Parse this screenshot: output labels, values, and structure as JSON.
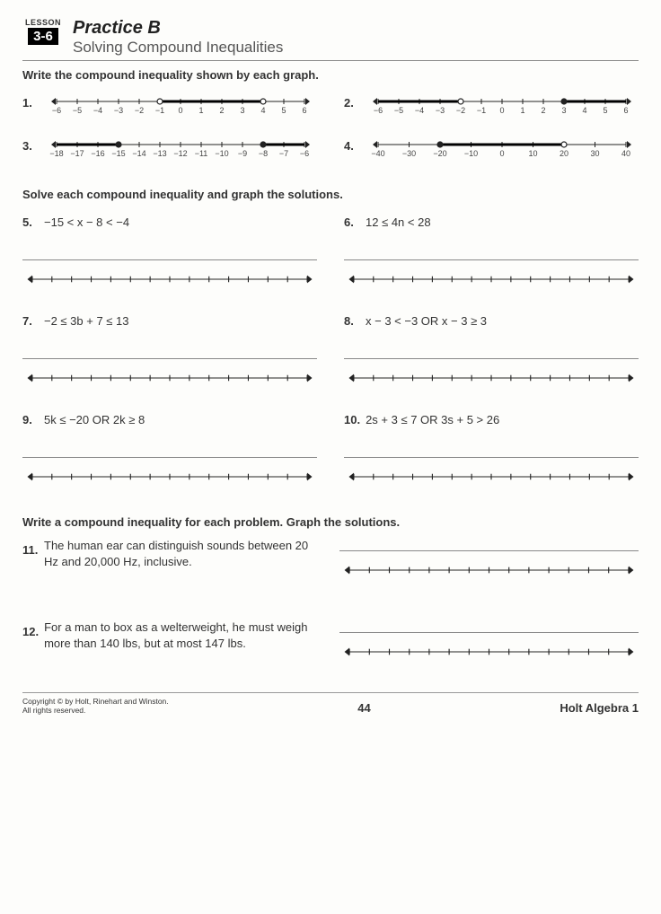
{
  "lesson": {
    "label": "LESSON",
    "number": "3-6"
  },
  "title": "Practice B",
  "subtitle": "Solving Compound Inequalities",
  "section1": {
    "instr": "Write the compound inequality shown by each graph.",
    "problems": [
      {
        "num": "1.",
        "min": -6,
        "max": 6,
        "ticks": [
          -6,
          -5,
          -4,
          -3,
          -2,
          -1,
          0,
          1,
          2,
          3,
          4,
          5,
          6
        ],
        "segments": [
          {
            "a": -1,
            "b": 4,
            "aOpen": true,
            "bOpen": true
          }
        ]
      },
      {
        "num": "2.",
        "min": -6,
        "max": 6,
        "ticks": [
          -6,
          -5,
          -4,
          -3,
          -2,
          -1,
          0,
          1,
          2,
          3,
          4,
          5,
          6
        ],
        "segments": [
          {
            "a": -999,
            "b": -2,
            "aOpen": false,
            "bOpen": true
          },
          {
            "a": 3,
            "b": 999,
            "aOpen": false,
            "bOpen": false
          }
        ]
      },
      {
        "num": "3.",
        "min": -18,
        "max": -6,
        "ticks": [
          -18,
          -17,
          -16,
          -15,
          -14,
          -13,
          -12,
          -11,
          -10,
          -9,
          -8,
          -7,
          -6
        ],
        "segments": [
          {
            "a": -999,
            "b": -15,
            "aOpen": false,
            "bOpen": false
          },
          {
            "a": -8,
            "b": 999,
            "aOpen": false,
            "bOpen": false
          }
        ]
      },
      {
        "num": "4.",
        "min": -40,
        "max": 40,
        "ticks": [
          -40,
          -30,
          -20,
          -10,
          0,
          10,
          20,
          30,
          40
        ],
        "segments": [
          {
            "a": -20,
            "b": 20,
            "aOpen": false,
            "bOpen": true
          }
        ]
      }
    ]
  },
  "section2": {
    "instr": "Solve each compound inequality and graph the solutions.",
    "problems": [
      {
        "num": "5.",
        "text": "−15 < x − 8 < −4"
      },
      {
        "num": "6.",
        "text": "12 ≤ 4n < 28"
      },
      {
        "num": "7.",
        "text": "−2 ≤ 3b + 7 ≤ 13"
      },
      {
        "num": "8.",
        "text": "x − 3 < −3 OR x − 3 ≥ 3"
      },
      {
        "num": "9.",
        "text": "5k ≤ −20 OR 2k ≥ 8"
      },
      {
        "num": "10.",
        "text": "2s + 3 ≤ 7 OR 3s + 5 > 26"
      }
    ]
  },
  "section3": {
    "instr": "Write a compound inequality for each problem. Graph the solutions.",
    "problems": [
      {
        "num": "11.",
        "text": "The human ear can distinguish sounds between 20 Hz and 20,000 Hz, inclusive."
      },
      {
        "num": "12.",
        "text": "For a man to box as a welterweight, he must weigh more than 140 lbs, but at most 147 lbs."
      }
    ]
  },
  "footer": {
    "copyright": "Copyright © by Holt, Rinehart and Winston.",
    "rights": "All rights reserved.",
    "page": "44",
    "book": "Holt Algebra 1"
  },
  "style": {
    "tick_color": "#333",
    "line_color": "#222",
    "tick_font": 9
  }
}
